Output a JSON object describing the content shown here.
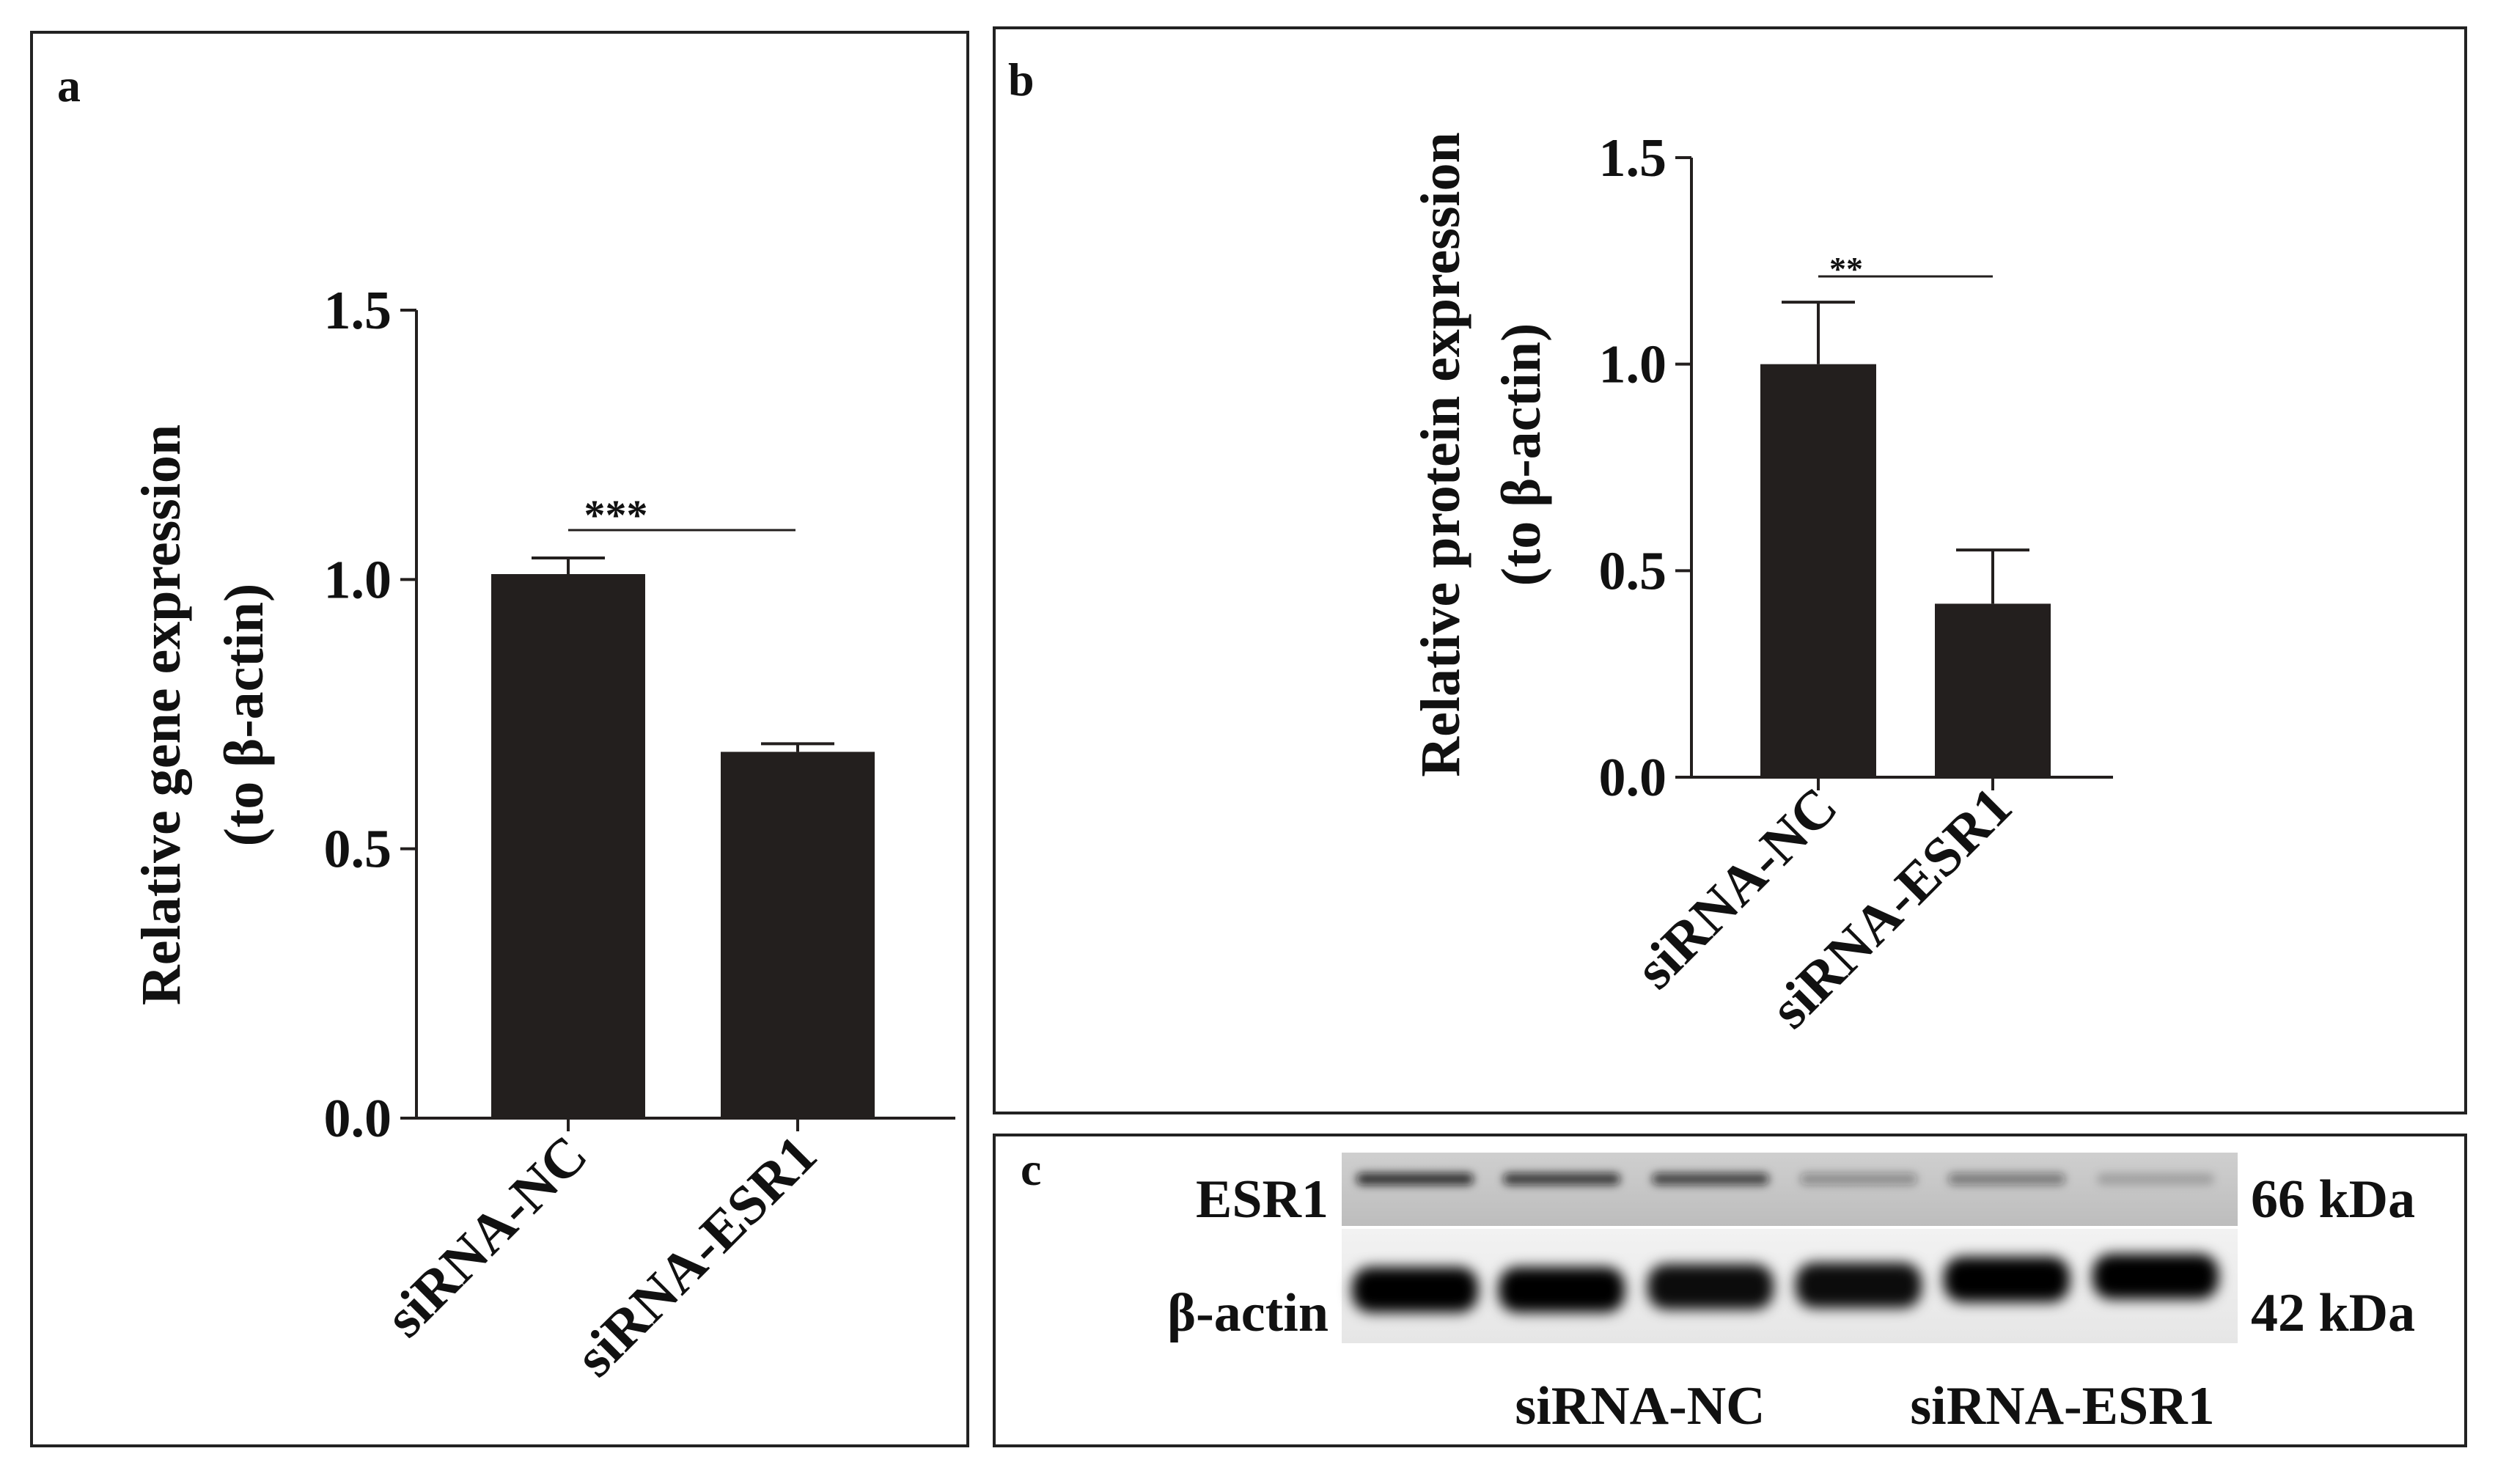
{
  "panels": {
    "a": {
      "letter": "a"
    },
    "b": {
      "letter": "b"
    },
    "c": {
      "letter": "c"
    }
  },
  "chart_data": [
    {
      "type": "bar",
      "panel": "a",
      "categories": [
        "siRNA-NC",
        "siRNA-ESR1"
      ],
      "values": [
        1.01,
        0.68
      ],
      "errors": [
        0.03,
        0.015
      ],
      "ylabel": [
        "Relative gene expression",
        "(to β-actin)"
      ],
      "ylim": [
        0,
        1.5
      ],
      "yticks": [
        "0.0",
        "0.5",
        "1.0",
        "1.5"
      ],
      "significance": "***",
      "bar_color": "#231f1e",
      "grid": false,
      "legend": false
    },
    {
      "type": "bar",
      "panel": "b",
      "categories": [
        "siRNA-NC",
        "siRNA-ESR1"
      ],
      "values": [
        1.0,
        0.42
      ],
      "errors": [
        0.15,
        0.13
      ],
      "ylabel": [
        "Relative protein expression",
        "(to β-actin)"
      ],
      "ylim": [
        0,
        1.5
      ],
      "yticks": [
        "0.0",
        "0.5",
        "1.0",
        "1.5"
      ],
      "significance": "**",
      "bar_color": "#231f1e",
      "grid": false,
      "legend": false
    }
  ],
  "blot": {
    "rows": [
      {
        "label": "ESR1",
        "size": "66 kDa",
        "band_intensity": [
          0.85,
          0.8,
          0.75,
          0.35,
          0.45,
          0.2
        ]
      },
      {
        "label": "β-actin",
        "size": "42 kDa",
        "band_intensity": [
          1.0,
          1.0,
          0.95,
          0.95,
          1.0,
          1.0
        ]
      }
    ],
    "groups": [
      "siRNA-NC",
      "siRNA-ESR1"
    ]
  }
}
